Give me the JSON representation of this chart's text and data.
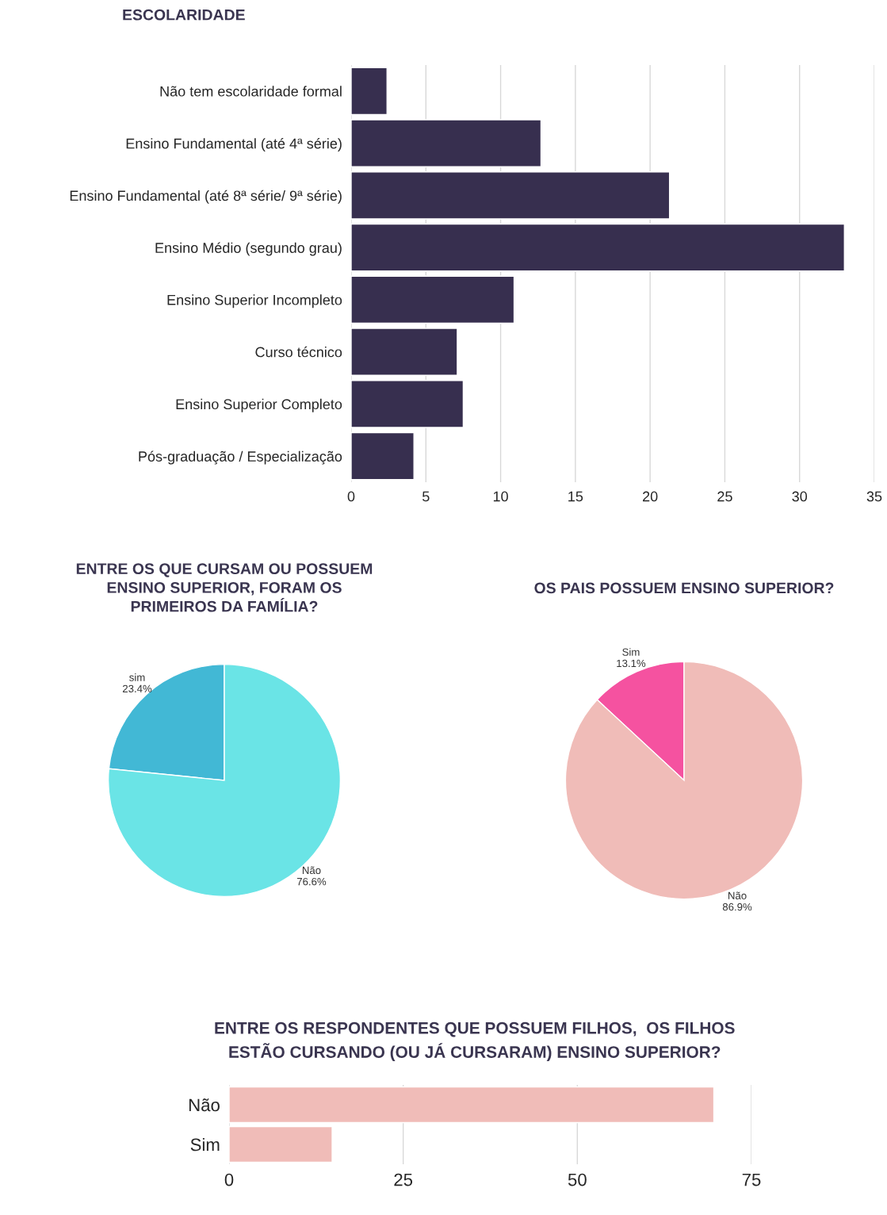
{
  "chart_data": [
    {
      "type": "bar",
      "orientation": "horizontal",
      "title": "ESCOLARIDADE",
      "categories": [
        "Não tem escolaridade formal",
        "Ensino Fundamental (até 4ª série)",
        "Ensino Fundamental (até 8ª série/ 9ª série)",
        "Ensino Médio (segundo grau)",
        "Ensino Superior Incompleto",
        "Curso técnico",
        "Ensino Superior Completo",
        "Pós-graduação / Especialização"
      ],
      "values": [
        2.4,
        12.7,
        21.3,
        33,
        10.9,
        7.1,
        7.5,
        4.2
      ],
      "color": "#372f4f",
      "xlim": [
        0,
        35
      ],
      "xticks": [
        0,
        5,
        10,
        15,
        20,
        25,
        30,
        35
      ],
      "grid": "x"
    },
    {
      "type": "pie",
      "title": "ENTRE OS QUE CURSAM OU POSSUEM\nENSINO SUPERIOR, FORAM OS\nPRIMEIROS DA FAMÍLIA?",
      "categories": [
        "sim",
        "Não"
      ],
      "values": [
        23.4,
        76.6
      ],
      "colors": [
        "#42b8d5",
        "#6ae4e6"
      ],
      "value_labels": [
        "23.4%",
        "76.6%"
      ]
    },
    {
      "type": "pie",
      "title": "OS PAIS POSSUEM ENSINO SUPERIOR?",
      "categories": [
        "Sim",
        "Não"
      ],
      "values": [
        13.1,
        86.9
      ],
      "colors": [
        "#f552a0",
        "#f0bcb8"
      ],
      "value_labels": [
        "13.1%",
        "86.9%"
      ]
    },
    {
      "type": "bar",
      "orientation": "horizontal",
      "title": "ENTRE OS RESPONDENTES QUE POSSUEM FILHOS,  OS FILHOS\nESTÃO CURSANDO (OU JÁ CURSARAM) ENSINO SUPERIOR?",
      "categories": [
        "Não",
        "Sim"
      ],
      "values": [
        69.6,
        14.8
      ],
      "color": "#f0bcb8",
      "xlim": [
        0,
        75
      ],
      "xticks": [
        0,
        25,
        50,
        75
      ],
      "grid": "x"
    }
  ]
}
